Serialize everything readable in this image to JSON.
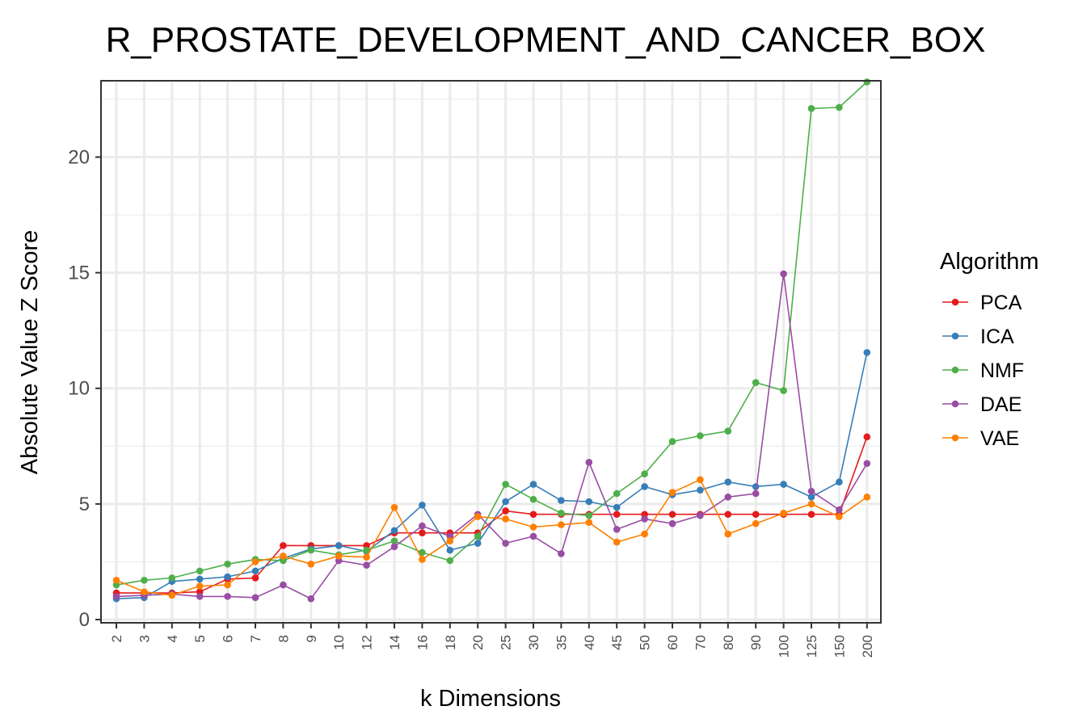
{
  "chart_data": {
    "type": "line",
    "title": "R_PROSTATE_DEVELOPMENT_AND_CANCER_BOX",
    "xlabel": "k Dimensions",
    "ylabel": "Absolute Value Z Score",
    "categories": [
      "2",
      "3",
      "4",
      "5",
      "6",
      "7",
      "8",
      "9",
      "10",
      "12",
      "14",
      "16",
      "18",
      "20",
      "25",
      "30",
      "35",
      "40",
      "45",
      "50",
      "60",
      "70",
      "80",
      "90",
      "100",
      "125",
      "150",
      "200"
    ],
    "ylim": [
      0,
      23.3
    ],
    "yticks": [
      0,
      5,
      10,
      15,
      20
    ],
    "grid": true,
    "legend_title": "Algorithm",
    "legend_position": "right",
    "series": [
      {
        "name": "PCA",
        "color": "#e41a1c",
        "values": [
          1.15,
          1.15,
          1.15,
          1.2,
          1.75,
          1.8,
          3.2,
          3.2,
          3.2,
          3.2,
          3.75,
          3.75,
          3.75,
          3.75,
          4.7,
          4.55,
          4.55,
          4.55,
          4.55,
          4.55,
          4.55,
          4.55,
          4.55,
          4.55,
          4.55,
          4.55,
          4.55,
          7.9
        ]
      },
      {
        "name": "ICA",
        "color": "#377eb8",
        "values": [
          0.9,
          0.95,
          1.65,
          1.75,
          1.85,
          2.1,
          2.65,
          3.05,
          3.2,
          2.95,
          3.85,
          4.95,
          3.0,
          3.3,
          5.1,
          5.85,
          5.15,
          5.1,
          4.85,
          5.75,
          5.4,
          5.6,
          5.95,
          5.75,
          5.85,
          5.3,
          5.95,
          11.55
        ]
      },
      {
        "name": "NMF",
        "color": "#4daf4a",
        "values": [
          1.5,
          1.7,
          1.8,
          2.1,
          2.4,
          2.6,
          2.55,
          3.0,
          2.8,
          3.0,
          3.4,
          2.9,
          2.55,
          3.6,
          5.85,
          5.2,
          4.6,
          4.5,
          5.45,
          6.3,
          7.7,
          7.95,
          8.15,
          10.25,
          9.9,
          22.1,
          22.15,
          23.25
        ]
      },
      {
        "name": "DAE",
        "color": "#984ea3",
        "values": [
          1.0,
          1.05,
          1.1,
          1.0,
          1.0,
          0.95,
          1.5,
          0.9,
          2.55,
          2.35,
          3.15,
          4.05,
          3.6,
          4.55,
          3.3,
          3.6,
          2.85,
          6.8,
          3.9,
          4.35,
          4.15,
          4.5,
          5.3,
          5.45,
          14.95,
          5.55,
          4.75,
          6.75
        ]
      },
      {
        "name": "VAE",
        "color": "#ff7f00",
        "values": [
          1.7,
          1.2,
          1.05,
          1.45,
          1.5,
          2.5,
          2.75,
          2.4,
          2.75,
          2.7,
          4.85,
          2.6,
          3.4,
          4.45,
          4.35,
          4.0,
          4.1,
          4.2,
          3.35,
          3.7,
          5.5,
          6.05,
          3.7,
          4.15,
          4.6,
          5.0,
          4.45,
          5.3
        ]
      }
    ]
  }
}
